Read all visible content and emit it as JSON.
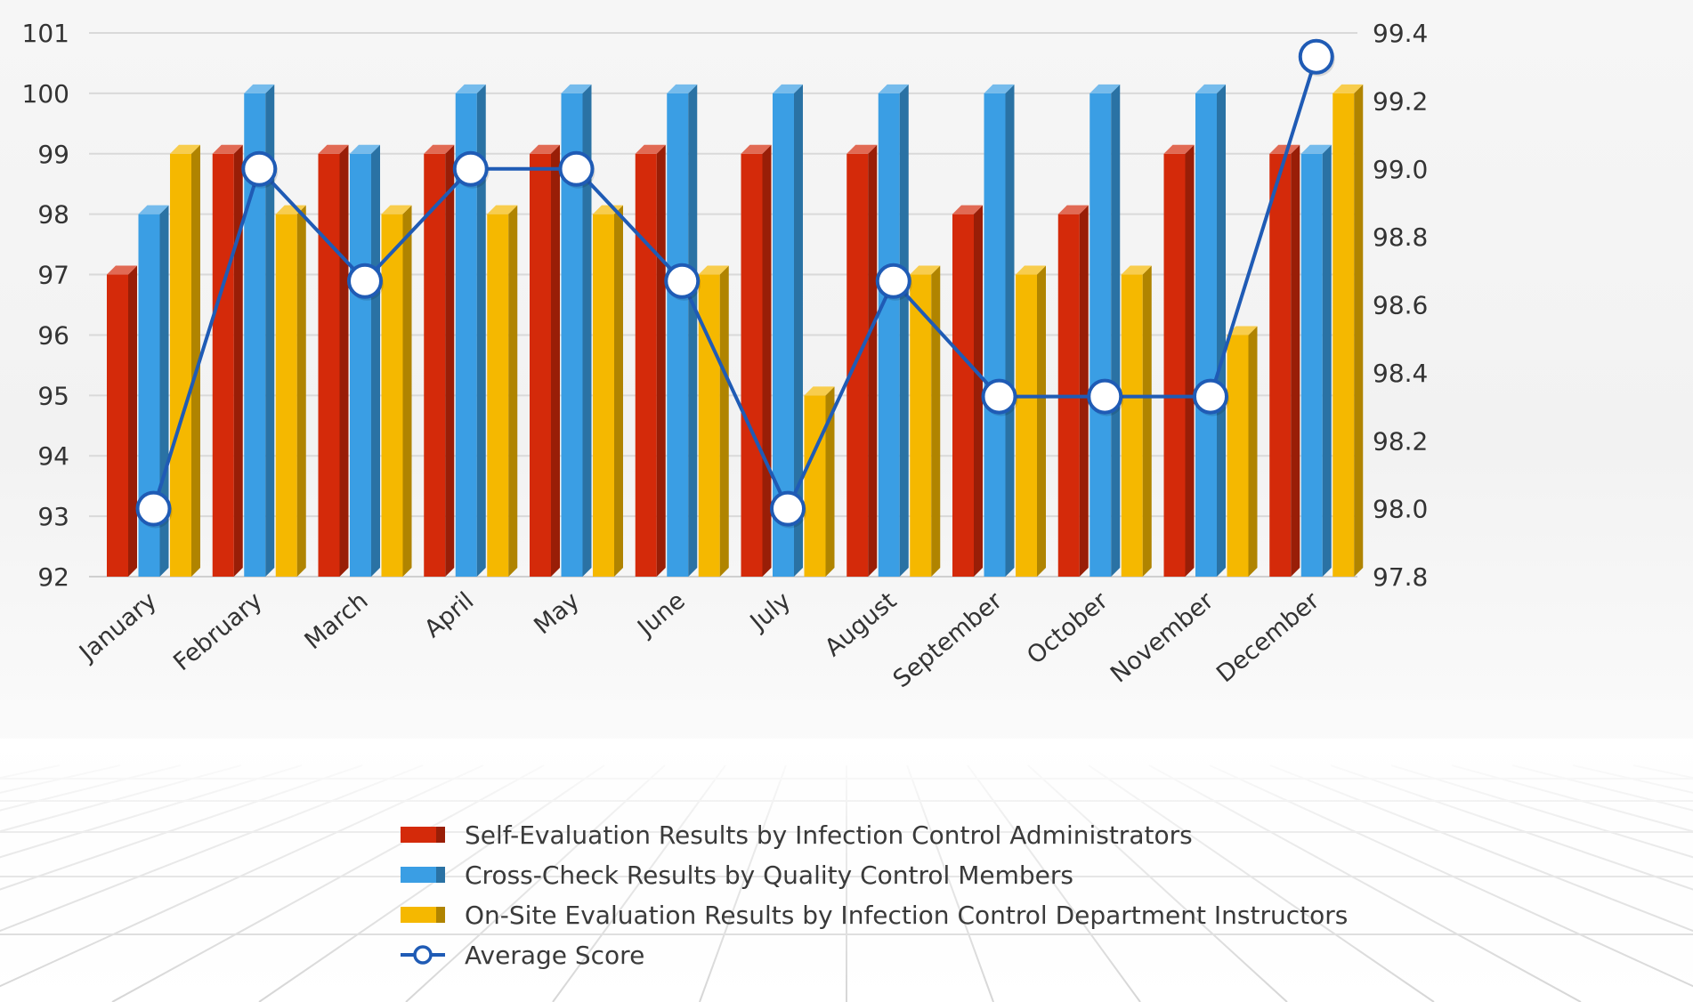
{
  "chart_data": {
    "type": "bar",
    "title": "",
    "xlabel": "",
    "ylabel": "",
    "categories": [
      "January",
      "February",
      "March",
      "April",
      "May",
      "June",
      "July",
      "August",
      "September",
      "October",
      "November",
      "December"
    ],
    "ylim": [
      92,
      101
    ],
    "y_ticks": [
      "92",
      "93",
      "94",
      "95",
      "96",
      "97",
      "98",
      "99",
      "100",
      "101"
    ],
    "y2lim": [
      97.8,
      99.4
    ],
    "y2_ticks": [
      "97.8",
      "98.0",
      "98.2",
      "98.4",
      "98.6",
      "98.8",
      "99.0",
      "99.2",
      "99.4"
    ],
    "grid": true,
    "legend_position": "bottom-center",
    "series": [
      {
        "name": "Self-Evaluation Results by Infection Control Administrators",
        "type": "bar",
        "axis": "left",
        "color": "#d42a0a",
        "values": [
          97,
          99,
          99,
          99,
          99,
          99,
          99,
          99,
          98,
          98,
          99,
          99
        ]
      },
      {
        "name": "Cross-Check Results by Quality Control Members",
        "type": "bar",
        "axis": "left",
        "color": "#3a9ee4",
        "values": [
          98,
          100,
          99,
          100,
          100,
          100,
          100,
          100,
          100,
          100,
          100,
          99
        ]
      },
      {
        "name": "On-Site Evaluation Results by Infection Control Department Instructors",
        "type": "bar",
        "axis": "left",
        "color": "#f5b800",
        "values": [
          99,
          98,
          98,
          98,
          98,
          97,
          95,
          97,
          97,
          97,
          96,
          100
        ]
      },
      {
        "name": "Average Score",
        "type": "line",
        "axis": "right",
        "color": "#1f5bb5",
        "values": [
          98.0,
          99.0,
          98.67,
          99.0,
          99.0,
          98.67,
          98.0,
          98.67,
          98.33,
          98.33,
          98.33,
          99.33
        ]
      }
    ]
  }
}
